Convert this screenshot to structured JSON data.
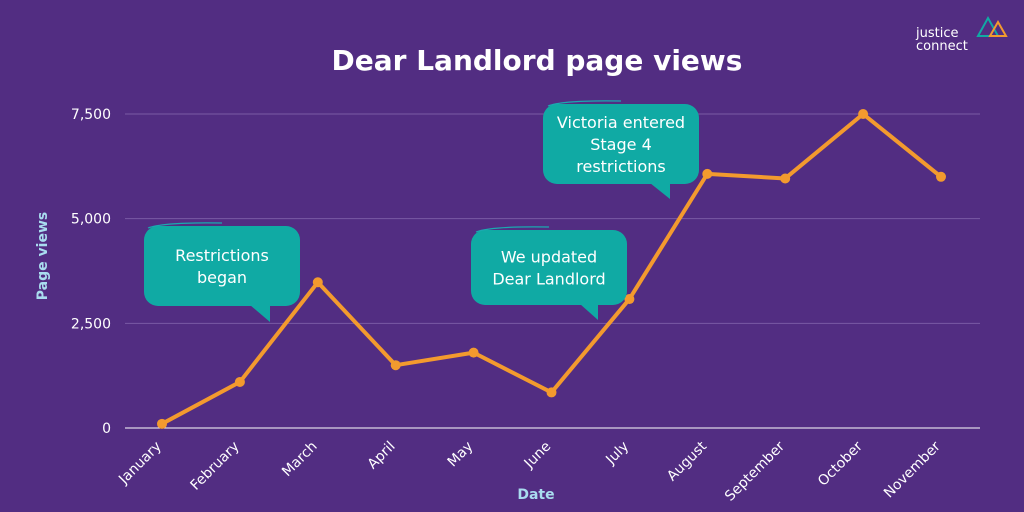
{
  "brand": {
    "line1": "justice",
    "line2": "connect"
  },
  "colors": {
    "background": "#522d82",
    "line": "#f39a2e",
    "callout": "#10aaa4",
    "grid": "#7a5aa4",
    "axis_title": "#a9dcef"
  },
  "chart_data": {
    "type": "line",
    "title": "Dear Landlord page views",
    "xlabel": "Date",
    "ylabel": "Page views",
    "categories": [
      "January",
      "February",
      "March",
      "April",
      "May",
      "June",
      "July",
      "August",
      "September",
      "October",
      "November"
    ],
    "series": [
      {
        "values": [
          100,
          1100,
          3480,
          1500,
          1800,
          850,
          3080,
          6070,
          5960,
          7500,
          6000
        ]
      }
    ],
    "ylim": [
      0,
      7500
    ],
    "yticks": [
      0,
      2500,
      5000,
      7500
    ],
    "ytick_labels": [
      "0",
      "2,500",
      "5,000",
      "7,500"
    ],
    "grid": true,
    "annotations": [
      {
        "lines": [
          "Restrictions",
          "began"
        ],
        "at": "March"
      },
      {
        "lines": [
          "We updated",
          "Dear Landlord"
        ],
        "at": "July"
      },
      {
        "lines": [
          "Victoria entered",
          "Stage 4",
          "restrictions"
        ],
        "at": "August"
      }
    ]
  }
}
